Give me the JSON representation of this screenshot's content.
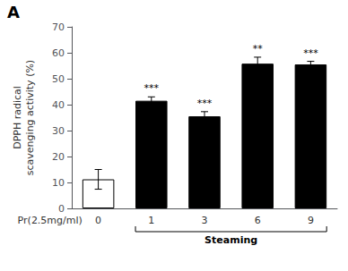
{
  "chart_data": {
    "type": "bar",
    "panel_label": "A",
    "categories": [
      "0",
      "1",
      "3",
      "6",
      "9"
    ],
    "values": [
      11.2,
      41.5,
      35.5,
      55.8,
      55.5
    ],
    "errors": [
      3.8,
      1.5,
      1.8,
      2.5,
      1.2
    ],
    "significance": [
      null,
      "***",
      "***",
      "**",
      "***"
    ],
    "colors": [
      "white",
      "black",
      "black",
      "black",
      "black"
    ],
    "ylabel": "DPPH radical\nscavenging activity (%)",
    "x_prefix": "Pr(2.5mg/ml)",
    "xlabel": "Steaming",
    "ylim": [
      0,
      70
    ],
    "yticks": [
      0,
      10,
      20,
      30,
      40,
      50,
      60,
      70
    ],
    "grid": false
  }
}
